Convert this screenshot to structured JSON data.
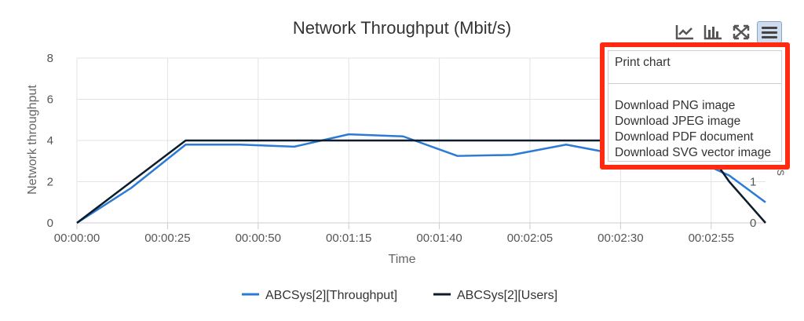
{
  "chart_data": {
    "type": "line",
    "title": "Network Throughput (Mbit/s)",
    "xlabel": "Time",
    "ylabel": "Network throughput",
    "y2label": "s",
    "ylim": [
      0,
      8
    ],
    "y2_ticks": [
      "0",
      "1"
    ],
    "x_ticks": [
      "00:00:00",
      "00:00:25",
      "00:00:50",
      "00:01:15",
      "00:01:40",
      "00:02:05",
      "00:02:30",
      "00:02:55"
    ],
    "y_ticks": [
      "0",
      "2",
      "4",
      "6",
      "8"
    ],
    "xlim_seconds": [
      0,
      190
    ],
    "grid": true,
    "legend": "bottom",
    "series": [
      {
        "name": "ABCSys[2][Throughput]",
        "color": "#2b7bd6",
        "points": [
          [
            0,
            0
          ],
          [
            15,
            1.7
          ],
          [
            30,
            3.8
          ],
          [
            45,
            3.8
          ],
          [
            60,
            3.7
          ],
          [
            75,
            4.3
          ],
          [
            90,
            4.2
          ],
          [
            105,
            3.25
          ],
          [
            120,
            3.3
          ],
          [
            135,
            3.8
          ],
          [
            150,
            3.3
          ],
          [
            165,
            3.5
          ],
          [
            180,
            2.3
          ],
          [
            190,
            1.0
          ]
        ]
      },
      {
        "name": "ABCSys[2][Users]",
        "color": "#0d1b2a",
        "points": [
          [
            0,
            0
          ],
          [
            30,
            4
          ],
          [
            150,
            4
          ],
          [
            172,
            4
          ],
          [
            180,
            2.0
          ],
          [
            190,
            0
          ]
        ]
      }
    ]
  },
  "menu": {
    "items": [
      "Print chart",
      "Download PNG image",
      "Download JPEG image",
      "Download PDF document",
      "Download SVG vector image"
    ]
  },
  "toolbar": {
    "icons": [
      "line-chart-icon",
      "bar-chart-icon",
      "fullscreen-icon",
      "hamburger-menu-icon"
    ]
  }
}
